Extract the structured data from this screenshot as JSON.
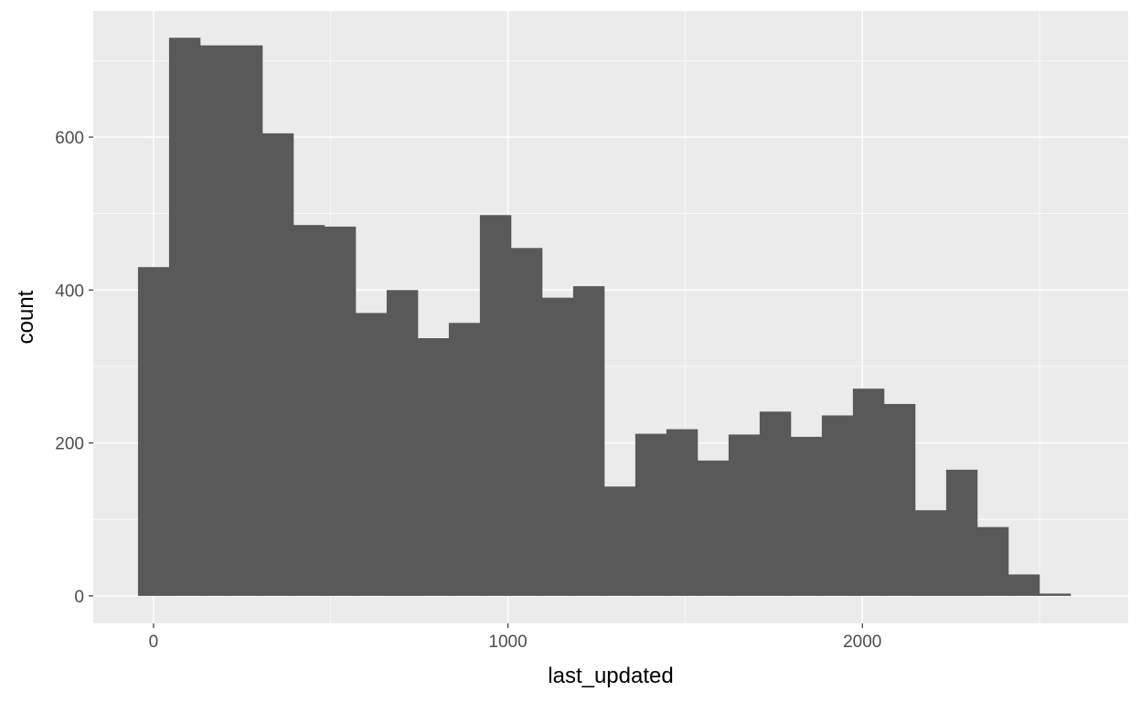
{
  "chart_data": {
    "type": "histogram",
    "xlabel": "last_updated",
    "ylabel": "count",
    "bin_width": 87.7,
    "bin_start": -43.85,
    "counts": [
      430,
      730,
      720,
      720,
      605,
      485,
      483,
      370,
      400,
      337,
      357,
      498,
      455,
      390,
      405,
      143,
      212,
      218,
      177,
      211,
      241,
      208,
      236,
      271,
      251,
      112,
      165,
      90,
      28,
      3
    ],
    "xlim": [
      -170,
      2750
    ],
    "ylim": [
      -36,
      765
    ],
    "x_ticks": [
      0,
      1000,
      2000
    ],
    "x_tick_labels": [
      "0",
      "1000",
      "2000"
    ],
    "y_ticks": [
      0,
      200,
      400,
      600
    ],
    "y_tick_labels": [
      "0",
      "200",
      "400",
      "600"
    ],
    "grid": true,
    "panel_background": "#ebebeb",
    "bar_color": "#595959",
    "grid_major_color": "#ffffff"
  }
}
